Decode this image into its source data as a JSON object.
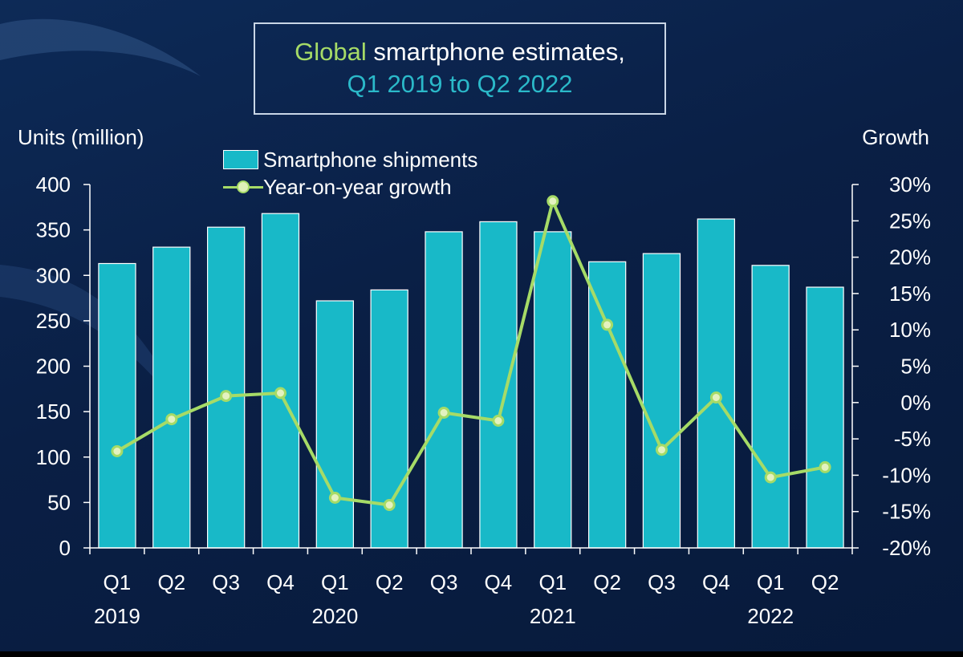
{
  "title": {
    "part_green": "Global",
    "part_white": " smartphone estimates,",
    "line2": "Q1 2019 to Q2 2022"
  },
  "chart_data": {
    "type": "bar",
    "y_left_label": "Units (million)",
    "y_right_label": "Growth",
    "ylim_left": [
      0,
      400
    ],
    "ylim_right": [
      -20,
      30
    ],
    "yticks_left": [
      "0",
      "50",
      "100",
      "150",
      "200",
      "250",
      "300",
      "350",
      "400"
    ],
    "yticks_right": [
      "-20%",
      "-15%",
      "-10%",
      "-5%",
      "0%",
      "5%",
      "10%",
      "15%",
      "20%",
      "25%",
      "30%"
    ],
    "quarters": [
      "Q1",
      "Q2",
      "Q3",
      "Q4",
      "Q1",
      "Q2",
      "Q3",
      "Q4",
      "Q1",
      "Q2",
      "Q3",
      "Q4",
      "Q1",
      "Q2"
    ],
    "years": [
      {
        "label": "2019",
        "start": 0
      },
      {
        "label": "2020",
        "start": 4
      },
      {
        "label": "2021",
        "start": 8
      },
      {
        "label": "2022",
        "start": 12
      }
    ],
    "series": [
      {
        "name": "Smartphone shipments",
        "type": "bar",
        "axis": "left",
        "color": "#18b9c8",
        "values": [
          313,
          331,
          353,
          368,
          272,
          284,
          348,
          359,
          348,
          315,
          324,
          362,
          311,
          287
        ]
      },
      {
        "name": "Year-on-year growth",
        "type": "line",
        "axis": "right",
        "color": "#a6db67",
        "values": [
          -6.7,
          -2.3,
          0.9,
          1.3,
          -13.1,
          -14.1,
          -1.4,
          -2.5,
          27.7,
          10.7,
          -6.5,
          0.7,
          -10.3,
          -8.9
        ]
      }
    ],
    "grid": false,
    "legend_position": "top-left"
  }
}
